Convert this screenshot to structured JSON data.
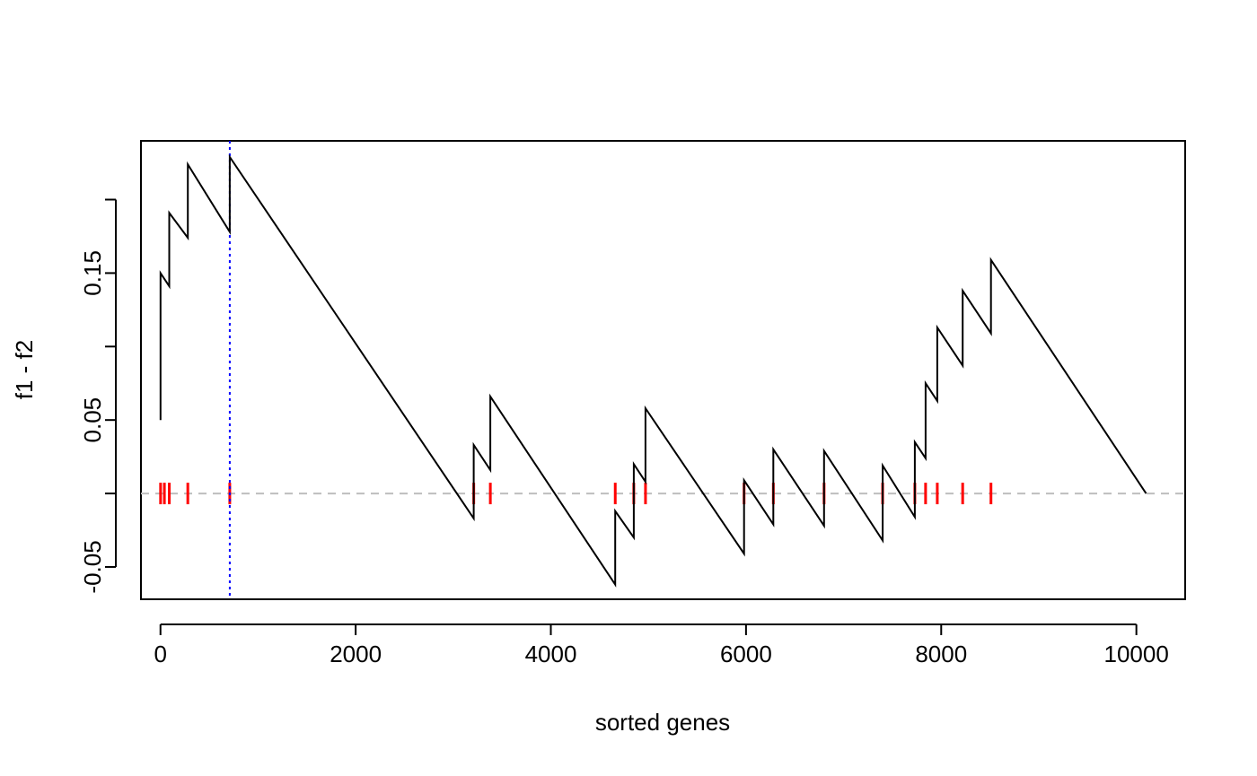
{
  "chart_data": {
    "type": "line",
    "title": "",
    "xlabel": "sorted genes",
    "ylabel": "f1 - f2",
    "xlim": [
      -200,
      10500
    ],
    "ylim": [
      -0.072,
      0.24
    ],
    "x_ticks": [
      0,
      2000,
      4000,
      6000,
      8000,
      10000
    ],
    "x_tick_labels": [
      "0",
      "2000",
      "4000",
      "6000",
      "8000",
      "10000"
    ],
    "y_ticks": [
      -0.05,
      0.0,
      0.05,
      0.1,
      0.15,
      0.2
    ],
    "y_tick_labels": [
      "-0.05",
      "",
      "0.05",
      "",
      "0.15",
      ""
    ],
    "grid": false,
    "series": [
      {
        "color": "#000000",
        "x": [
          1,
          1,
          90,
          90,
          280,
          280,
          710,
          710,
          3210,
          3210,
          3380,
          3380,
          4660,
          4660,
          4850,
          4850,
          4970,
          4970,
          5980,
          5980,
          6280,
          6280,
          6800,
          6800,
          7400,
          7400,
          7730,
          7730,
          7840,
          7840,
          7960,
          7960,
          8220,
          8220,
          8510,
          8510,
          10100
        ],
        "y": [
          0.05,
          0.15,
          0.141,
          0.191,
          0.174,
          0.224,
          0.178,
          0.229,
          -0.017,
          0.033,
          0.016,
          0.066,
          -0.062,
          -0.012,
          -0.03,
          0.02,
          0.008,
          0.058,
          -0.041,
          0.009,
          -0.021,
          0.03,
          -0.022,
          0.029,
          -0.032,
          0.019,
          -0.016,
          0.035,
          0.024,
          0.075,
          0.063,
          0.113,
          0.087,
          0.138,
          0.109,
          0.159,
          0.0
        ]
      }
    ],
    "rug": {
      "color": "#ff0000",
      "y": 0.0,
      "x": [
        1,
        40,
        90,
        280,
        710,
        3210,
        3380,
        4660,
        4850,
        4970,
        5980,
        6280,
        6800,
        7400,
        7730,
        7840,
        7960,
        8220,
        8510
      ]
    },
    "hline": {
      "y": 0.0,
      "color": "#bebebe",
      "style": "dashed"
    },
    "vline": {
      "x": 710,
      "color": "#0000ff",
      "style": "dotted"
    }
  }
}
